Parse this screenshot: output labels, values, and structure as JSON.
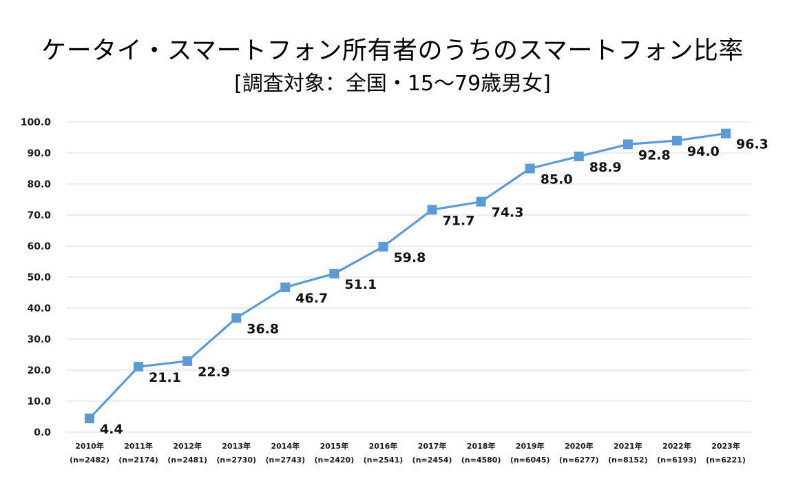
{
  "colors": {
    "series": "#5B9BD5",
    "grid": "#D9D9D9",
    "background": "#FFFFFF"
  },
  "chart_data": {
    "type": "line",
    "title": "ケータイ・スマートフォン所有者のうちのスマートフォン比率",
    "subtitle": "[調査対象：全国・15～79歳男女]",
    "xlabel": "",
    "ylabel": "",
    "ylim": [
      0,
      100
    ],
    "yticks": [
      "0.0",
      "10.0",
      "20.0",
      "30.0",
      "40.0",
      "50.0",
      "60.0",
      "70.0",
      "80.0",
      "90.0",
      "100.0"
    ],
    "grid": "horizontal",
    "legend": "none",
    "marker": "square",
    "categories": [
      "2010年",
      "2011年",
      "2012年",
      "2013年",
      "2014年",
      "2015年",
      "2016年",
      "2017年",
      "2018年",
      "2019年",
      "2020年",
      "2021年",
      "2022年",
      "2023年"
    ],
    "sample_sizes": [
      "(n=2482)",
      "(n=2174)",
      "(n=2481)",
      "(n=2730)",
      "(n=2743)",
      "(n=2420)",
      "(n=2541)",
      "(n=2454)",
      "(n=4580)",
      "(n=6045)",
      "(n=6277)",
      "(n=8152)",
      "(n=6193)",
      "(n=6221)"
    ],
    "values": [
      4.4,
      21.1,
      22.9,
      36.8,
      46.7,
      51.1,
      59.8,
      71.7,
      74.3,
      85.0,
      88.9,
      92.8,
      94.0,
      96.3
    ],
    "value_labels": [
      "4.4",
      "21.1",
      "22.9",
      "36.8",
      "46.7",
      "51.1",
      "59.8",
      "71.7",
      "74.3",
      "85.0",
      "88.9",
      "92.8",
      "94.0",
      "96.3"
    ]
  }
}
